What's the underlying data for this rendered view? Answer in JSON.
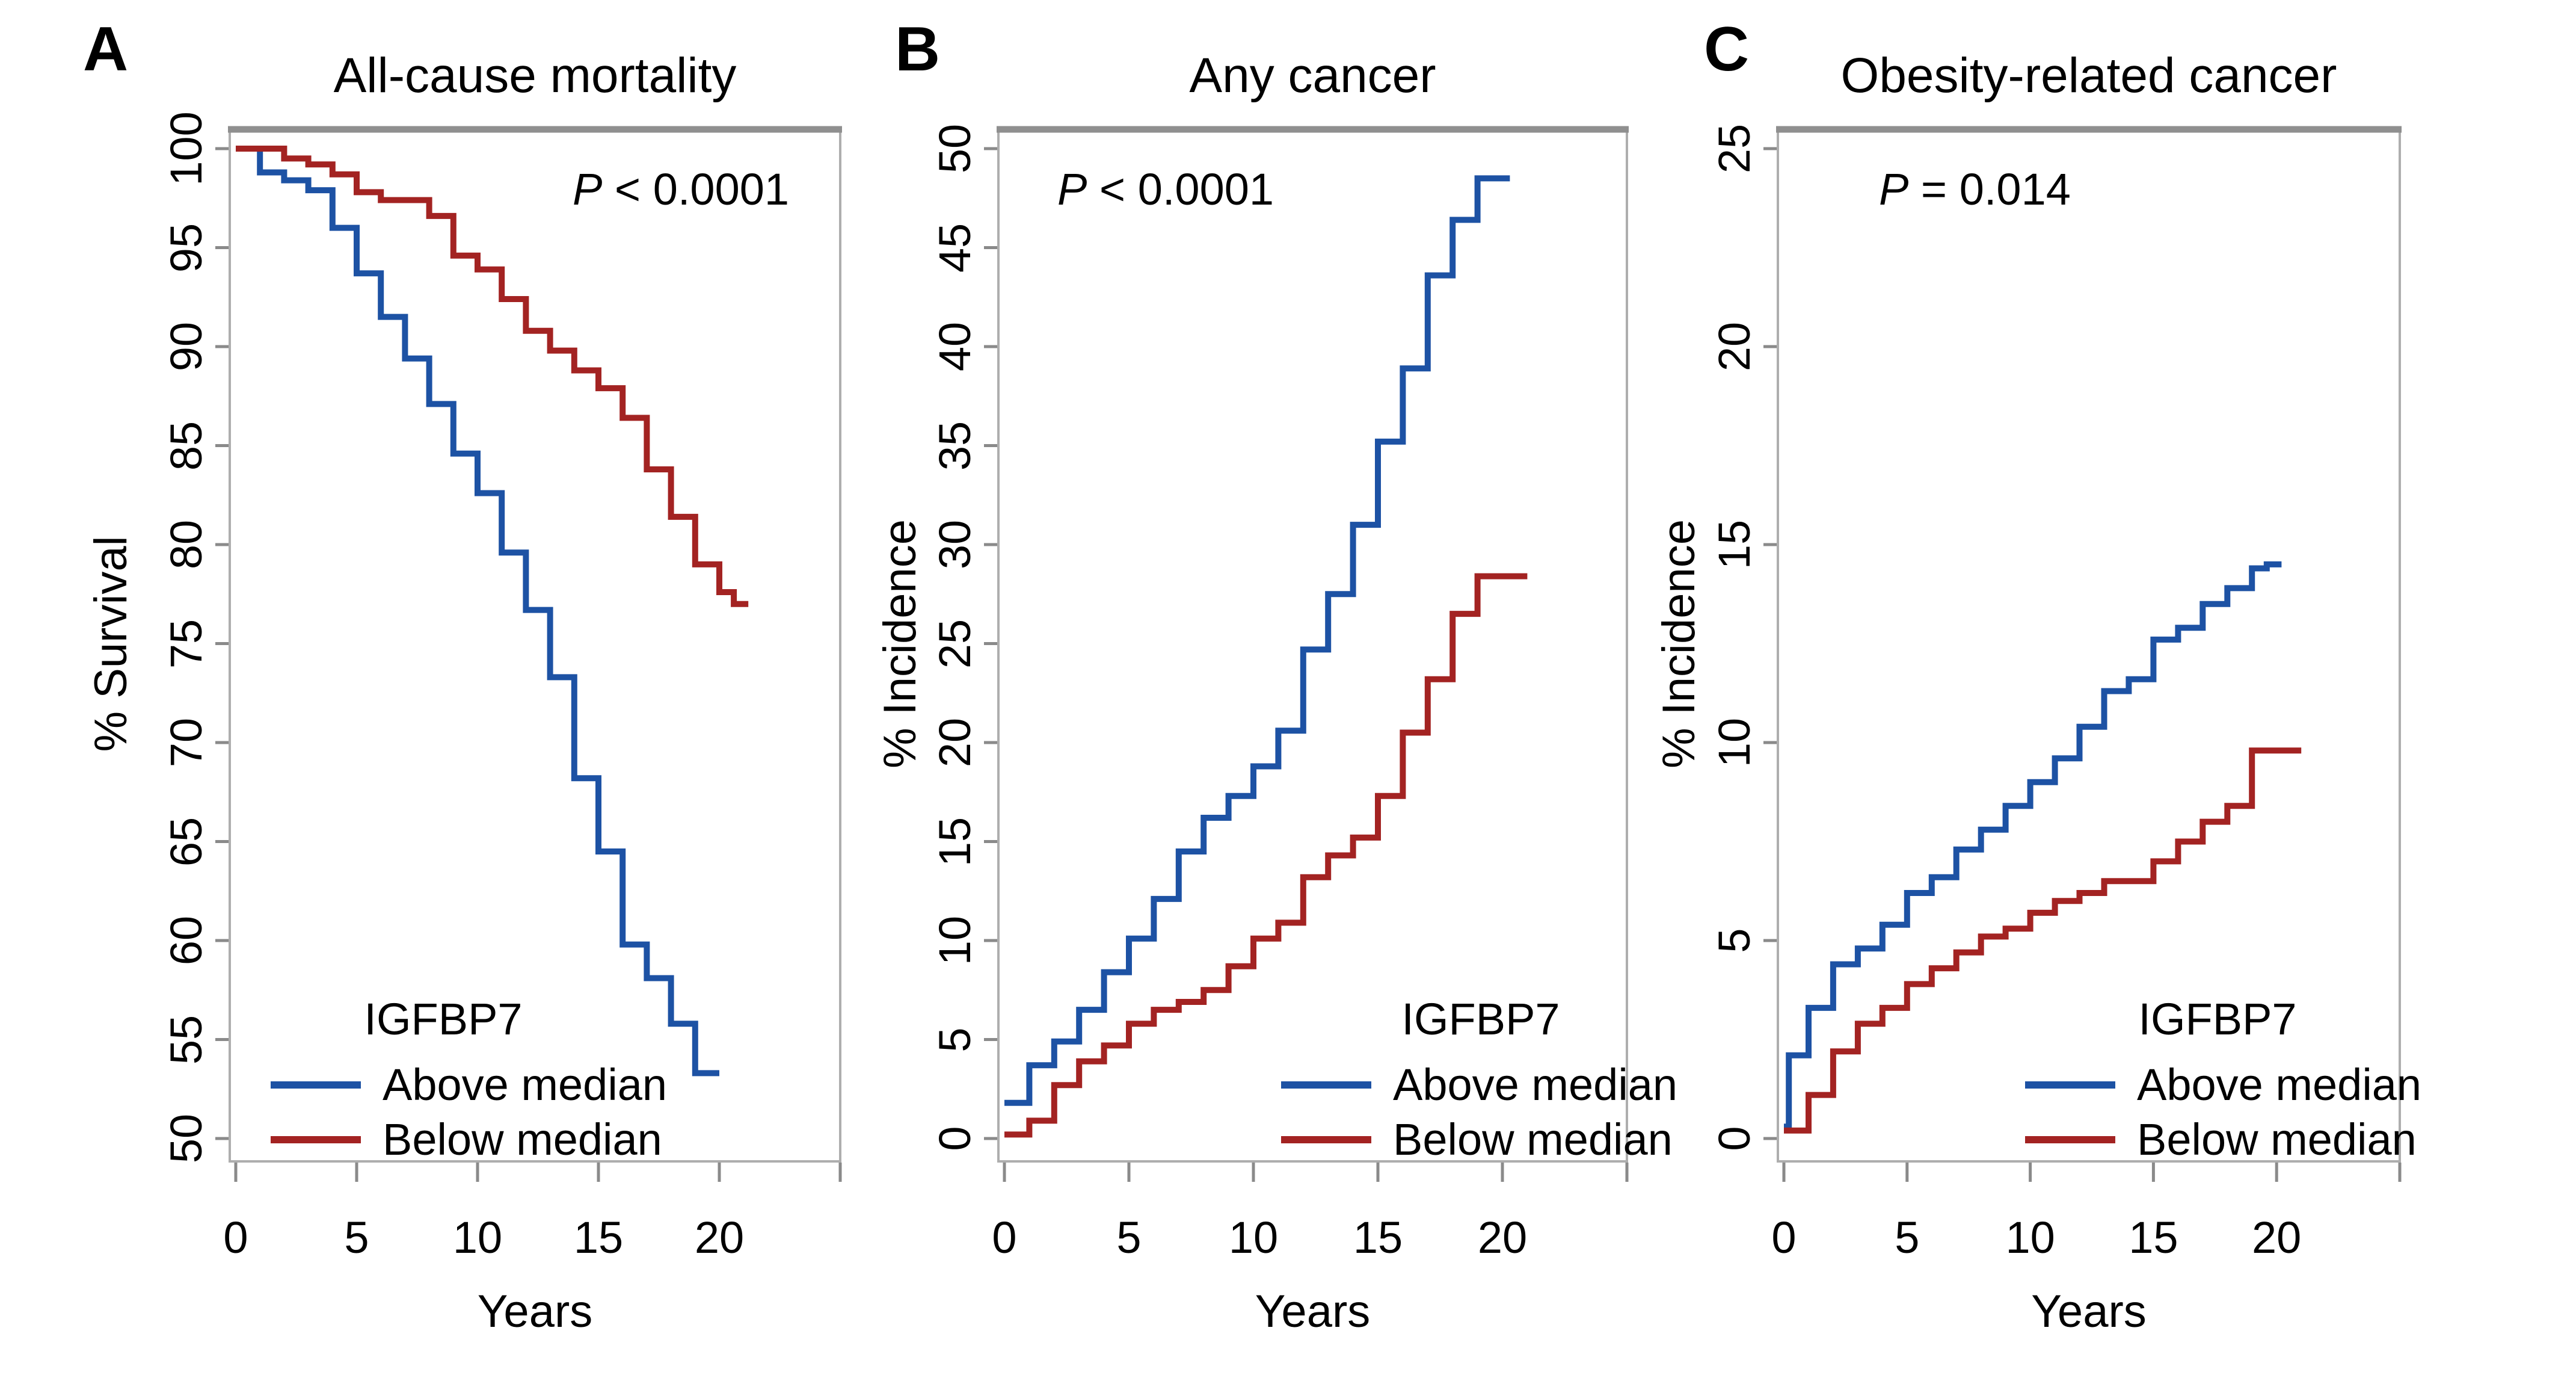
{
  "colors": {
    "background": "#ffffff",
    "axis_box": "#aeaeae",
    "top_border": "#8f8f8f",
    "tick": "#8a8a8a",
    "text": "#000000",
    "above_median": "#1d52a4",
    "below_median": "#a32322"
  },
  "chart_data": [
    {
      "panel_label": "A",
      "title": "All-cause mortality",
      "type": "line",
      "step": true,
      "p_value": {
        "symbol": "P",
        "relation": "< 0.0001"
      },
      "xlabel": "Years",
      "ylabel": "% Survival",
      "xlim": [
        0,
        25
      ],
      "ylim": [
        50,
        100
      ],
      "x_ticks": [
        0,
        5,
        10,
        15,
        20
      ],
      "y_ticks": [
        100,
        95,
        90,
        85,
        80,
        75,
        70,
        65,
        60,
        55,
        50
      ],
      "legend": {
        "heading": "IGFBP7",
        "entries": [
          {
            "label": "Above median",
            "color": "#1d52a4"
          },
          {
            "label": "Below median",
            "color": "#a32322"
          }
        ]
      },
      "series": [
        {
          "name": "Above median",
          "color": "#1d52a4",
          "points": [
            [
              0,
              100
            ],
            [
              1,
              98.8
            ],
            [
              2,
              98.4
            ],
            [
              3,
              97.9
            ],
            [
              4,
              96.0
            ],
            [
              5,
              93.7
            ],
            [
              6,
              91.5
            ],
            [
              7,
              89.4
            ],
            [
              8,
              87.1
            ],
            [
              9,
              84.6
            ],
            [
              10,
              82.6
            ],
            [
              11,
              79.6
            ],
            [
              12,
              76.7
            ],
            [
              13,
              73.3
            ],
            [
              14,
              68.2
            ],
            [
              15,
              64.5
            ],
            [
              16,
              59.8
            ],
            [
              17,
              58.1
            ],
            [
              18,
              55.8
            ],
            [
              19,
              53.3
            ],
            [
              20,
              53.3
            ]
          ]
        },
        {
          "name": "Below median",
          "color": "#a32322",
          "points": [
            [
              0,
              100
            ],
            [
              2,
              99.5
            ],
            [
              3,
              99.2
            ],
            [
              4,
              98.7
            ],
            [
              5,
              97.8
            ],
            [
              6,
              97.4
            ],
            [
              8,
              96.6
            ],
            [
              9,
              94.6
            ],
            [
              10,
              93.9
            ],
            [
              11,
              92.4
            ],
            [
              12,
              90.8
            ],
            [
              13,
              89.8
            ],
            [
              14,
              88.8
            ],
            [
              15,
              87.9
            ],
            [
              16,
              86.4
            ],
            [
              17,
              83.8
            ],
            [
              18,
              81.4
            ],
            [
              19,
              79.0
            ],
            [
              20,
              77.6
            ],
            [
              20.6,
              77.0
            ],
            [
              21.2,
              77.0
            ]
          ]
        }
      ]
    },
    {
      "panel_label": "B",
      "title": "Any cancer",
      "type": "line",
      "step": true,
      "p_value": {
        "symbol": "P",
        "relation": "< 0.0001"
      },
      "xlabel": "Years",
      "ylabel": "% Incidence",
      "xlim": [
        0,
        25
      ],
      "ylim": [
        0,
        50
      ],
      "x_ticks": [
        0,
        5,
        10,
        15,
        20
      ],
      "y_ticks": [
        50,
        45,
        40,
        35,
        30,
        25,
        20,
        15,
        10,
        5,
        0
      ],
      "legend": {
        "heading": "IGFBP7",
        "entries": [
          {
            "label": "Above median",
            "color": "#1d52a4"
          },
          {
            "label": "Below median",
            "color": "#a32322"
          }
        ]
      },
      "series": [
        {
          "name": "Above median",
          "color": "#1d52a4",
          "points": [
            [
              0,
              1.8
            ],
            [
              1,
              3.7
            ],
            [
              2,
              4.9
            ],
            [
              3,
              6.5
            ],
            [
              4,
              8.4
            ],
            [
              5,
              10.1
            ],
            [
              6,
              12.1
            ],
            [
              7,
              14.5
            ],
            [
              8,
              16.2
            ],
            [
              9,
              17.3
            ],
            [
              10,
              18.8
            ],
            [
              11,
              20.6
            ],
            [
              12,
              24.7
            ],
            [
              13,
              27.5
            ],
            [
              14,
              31.0
            ],
            [
              15,
              35.2
            ],
            [
              16,
              38.9
            ],
            [
              17,
              43.6
            ],
            [
              18,
              46.4
            ],
            [
              19,
              48.5
            ],
            [
              20.3,
              48.5
            ]
          ]
        },
        {
          "name": "Below median",
          "color": "#a32322",
          "points": [
            [
              0,
              0.2
            ],
            [
              1,
              0.9
            ],
            [
              2,
              2.7
            ],
            [
              3,
              3.9
            ],
            [
              4,
              4.7
            ],
            [
              5,
              5.8
            ],
            [
              6,
              6.5
            ],
            [
              7,
              6.9
            ],
            [
              8,
              7.5
            ],
            [
              9,
              8.7
            ],
            [
              10,
              10.1
            ],
            [
              11,
              10.9
            ],
            [
              12,
              13.2
            ],
            [
              13,
              14.3
            ],
            [
              14,
              15.2
            ],
            [
              15,
              17.3
            ],
            [
              16,
              20.5
            ],
            [
              17,
              23.2
            ],
            [
              18,
              26.5
            ],
            [
              19,
              28.4
            ],
            [
              21,
              28.4
            ]
          ]
        }
      ]
    },
    {
      "panel_label": "C",
      "title": "Obesity-related cancer",
      "type": "line",
      "step": true,
      "p_value": {
        "symbol": "P",
        "relation": "= 0.014"
      },
      "xlabel": "Years",
      "ylabel": "% Incidence",
      "xlim": [
        0,
        25
      ],
      "ylim": [
        0,
        25
      ],
      "x_ticks": [
        0,
        5,
        10,
        15,
        20
      ],
      "y_ticks": [
        25,
        20,
        15,
        10,
        5,
        0
      ],
      "legend": {
        "heading": "IGFBP7",
        "entries": [
          {
            "label": "Above median",
            "color": "#1d52a4"
          },
          {
            "label": "Below median",
            "color": "#a32322"
          }
        ]
      },
      "series": [
        {
          "name": "Above median",
          "color": "#1d52a4",
          "points": [
            [
              0,
              0.3
            ],
            [
              0.2,
              2.1
            ],
            [
              1,
              3.3
            ],
            [
              2,
              4.4
            ],
            [
              3,
              4.8
            ],
            [
              4,
              5.4
            ],
            [
              5,
              6.2
            ],
            [
              6,
              6.6
            ],
            [
              7,
              7.3
            ],
            [
              8,
              7.8
            ],
            [
              9,
              8.4
            ],
            [
              10,
              9.0
            ],
            [
              11,
              9.6
            ],
            [
              12,
              10.4
            ],
            [
              13,
              11.3
            ],
            [
              14,
              11.6
            ],
            [
              15,
              12.6
            ],
            [
              16,
              12.9
            ],
            [
              17,
              13.5
            ],
            [
              18,
              13.9
            ],
            [
              19,
              14.4
            ],
            [
              19.6,
              14.5
            ],
            [
              20.2,
              14.5
            ]
          ]
        },
        {
          "name": "Below median",
          "color": "#a32322",
          "points": [
            [
              0,
              0.2
            ],
            [
              1,
              1.1
            ],
            [
              2,
              2.2
            ],
            [
              3,
              2.9
            ],
            [
              4,
              3.3
            ],
            [
              5,
              3.9
            ],
            [
              6,
              4.3
            ],
            [
              7,
              4.7
            ],
            [
              8,
              5.1
            ],
            [
              9,
              5.3
            ],
            [
              10,
              5.7
            ],
            [
              11,
              6.0
            ],
            [
              12,
              6.2
            ],
            [
              13,
              6.5
            ],
            [
              15,
              7.0
            ],
            [
              16,
              7.5
            ],
            [
              17,
              8.0
            ],
            [
              18,
              8.4
            ],
            [
              19,
              9.8
            ],
            [
              21,
              9.8
            ]
          ]
        }
      ]
    }
  ]
}
